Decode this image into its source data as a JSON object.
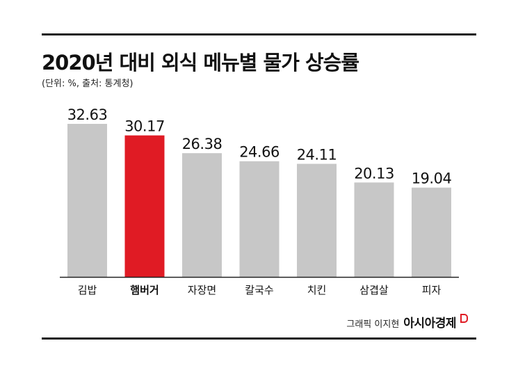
{
  "chart_data": {
    "type": "bar",
    "title": "2020년 대비 외식 메뉴별 물가 상승률",
    "subtitle": "(단위: %, 출처: 통계청)",
    "categories": [
      "김밥",
      "햄버거",
      "자장면",
      "칼국수",
      "치킨",
      "삼겹살",
      "피자"
    ],
    "values": [
      32.63,
      30.17,
      26.38,
      24.66,
      24.11,
      20.13,
      19.04
    ],
    "value_labels": [
      "32.63",
      "30.17",
      "26.38",
      "24.66",
      "24.11",
      "20.13",
      "19.04"
    ],
    "highlight": "햄버거",
    "colors": {
      "bar": "#c7c7c7",
      "highlight": "#e01b24",
      "axis": "#222222"
    },
    "ylim": [
      0,
      32.63
    ],
    "grid": false,
    "legend": "none"
  },
  "credit": {
    "graphic": "그래픽 이지현",
    "logo": "아시아경제"
  }
}
